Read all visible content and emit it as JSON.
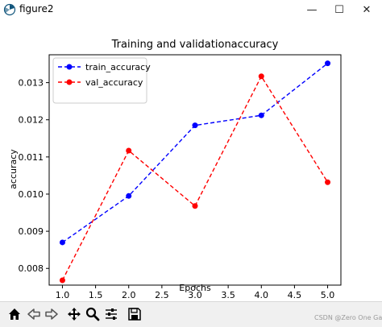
{
  "window": {
    "title": "figure2",
    "minimize_glyph": "—",
    "maximize_glyph": "☐",
    "close_glyph": "✕"
  },
  "toolbar": {
    "items": [
      "home-icon",
      "back-arrow-icon",
      "forward-arrow-icon",
      "pan-icon",
      "zoom-icon",
      "configure-subplots-icon",
      "save-icon"
    ]
  },
  "watermark": "CSDN @Zero One Game",
  "chart_data": {
    "type": "line",
    "title": "Training and validationaccuracy",
    "xlabel": "Epochs",
    "ylabel": "accuracy",
    "x": [
      1,
      2,
      3,
      4,
      5
    ],
    "xlim": [
      0.8,
      5.2
    ],
    "ylim": [
      0.00755,
      0.01375
    ],
    "xticks": [
      "1.0",
      "1.5",
      "2.0",
      "2.5",
      "3.0",
      "3.5",
      "4.0",
      "4.5",
      "5.0"
    ],
    "xtick_values": [
      1.0,
      1.5,
      2.0,
      2.5,
      3.0,
      3.5,
      4.0,
      4.5,
      5.0
    ],
    "yticks": [
      "0.008",
      "0.009",
      "0.010",
      "0.011",
      "0.012",
      "0.013"
    ],
    "ytick_values": [
      0.008,
      0.009,
      0.01,
      0.011,
      0.012,
      0.013
    ],
    "legend_position": "upper-left",
    "grid": false,
    "series": [
      {
        "name": "train_accuracy",
        "color": "#0000ff",
        "values": [
          0.0087,
          0.00995,
          0.01185,
          0.01212,
          0.01352
        ]
      },
      {
        "name": "val_accuracy",
        "color": "#ff0000",
        "values": [
          0.00768,
          0.01117,
          0.00968,
          0.01317,
          0.01032
        ]
      }
    ]
  }
}
